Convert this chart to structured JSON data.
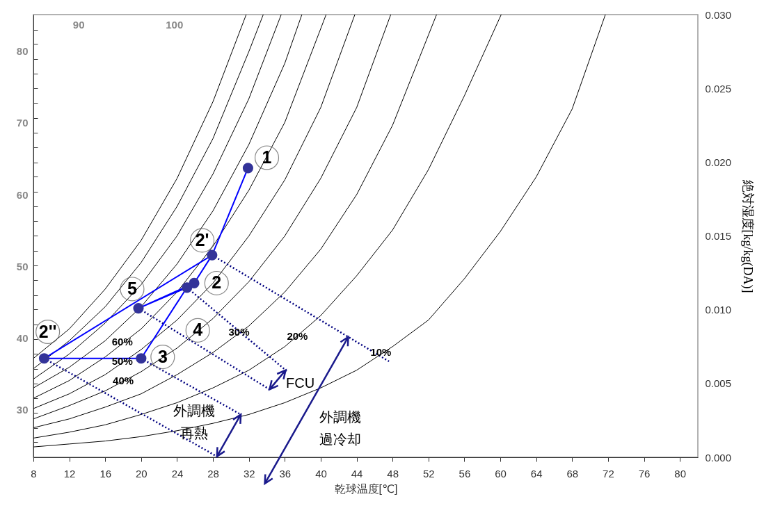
{
  "chart_data": {
    "type": "line",
    "xlabel": "乾球温度[℃]",
    "ylabel": "絶対湿度[kg/kg(DA)]",
    "xlim": [
      8,
      82
    ],
    "xticks": [
      8,
      12,
      16,
      20,
      24,
      28,
      32,
      36,
      40,
      44,
      48,
      52,
      56,
      60,
      64,
      68,
      72,
      76,
      80
    ],
    "x2lim": [
      85.3,
      154.7
    ],
    "x2ticks": [
      90,
      100
    ],
    "ylim": [
      0,
      0.03
    ],
    "yticks": [
      {
        "value": 0,
        "label": "0.000"
      },
      {
        "value": 0.005,
        "label": "0.005"
      },
      {
        "value": 0.01,
        "label": "0.010"
      },
      {
        "value": 0.015,
        "label": "0.015"
      },
      {
        "value": 0.02,
        "label": "0.020"
      },
      {
        "value": 0.025,
        "label": "0.025"
      },
      {
        "value": 0.03,
        "label": "0.030"
      }
    ],
    "y2lim": [
      23.4,
      85.1
    ],
    "y2ticks": [
      30,
      40,
      50,
      60,
      70,
      80,
      {
        "value": 25.5,
        "label": null
      },
      {
        "value": 27.5,
        "label": null
      },
      {
        "value": 29.6,
        "label": null
      },
      {
        "value": 31.6,
        "label": null
      },
      {
        "value": 33.7,
        "label": null
      },
      {
        "value": 35.7,
        "label": null
      },
      {
        "value": 37.8,
        "label": null
      },
      {
        "value": 39.9,
        "label": null
      },
      {
        "value": 41.9,
        "label": null
      },
      {
        "value": 44.0,
        "label": null
      },
      {
        "value": 46.0,
        "label": null
      },
      {
        "value": 48.1,
        "label": null
      },
      {
        "value": 50.1,
        "label": null
      },
      {
        "value": 52.2,
        "label": null
      },
      {
        "value": 54.3,
        "label": null
      },
      {
        "value": 56.3,
        "label": null
      },
      {
        "value": 58.4,
        "label": null
      },
      {
        "value": 60.4,
        "label": null
      },
      {
        "value": 62.5,
        "label": null
      },
      {
        "value": 64.5,
        "label": null
      },
      {
        "value": 66.6,
        "label": null
      },
      {
        "value": 68.6,
        "label": null
      },
      {
        "value": 70.7,
        "label": null
      },
      {
        "value": 72.8,
        "label": null
      },
      {
        "value": 74.8,
        "label": null
      },
      {
        "value": 76.9,
        "label": null
      },
      {
        "value": 78.9,
        "label": null
      },
      {
        "value": 81.0,
        "label": null
      },
      {
        "value": 83.0,
        "label": null
      }
    ],
    "series": [
      {
        "color": "#000000",
        "line_style": "solid",
        "marker": "none",
        "x": [
          8,
          12,
          16,
          20,
          24,
          28,
          31.7
        ],
        "values": [
          0.0067,
          0.0087,
          0.0114,
          0.0147,
          0.0189,
          0.0241,
          0.03
        ]
      },
      {
        "color": "#000000",
        "line_style": "solid",
        "marker": "none",
        "x": [
          8,
          12,
          16,
          20,
          24,
          28,
          32,
          33.6
        ],
        "values": [
          0.006,
          0.0079,
          0.0102,
          0.0132,
          0.017,
          0.0216,
          0.0275,
          0.03
        ]
      },
      {
        "color": "#000000",
        "line_style": "solid",
        "marker": "none",
        "x": [
          8,
          12,
          16,
          20,
          24,
          28,
          32,
          35.6
        ],
        "values": [
          0.0053,
          0.007,
          0.0091,
          0.0117,
          0.015,
          0.0192,
          0.0243,
          0.03
        ]
      },
      {
        "color": "#000000",
        "line_style": "solid",
        "marker": "none",
        "x": [
          8,
          12,
          16,
          20,
          24,
          28,
          32,
          36,
          37.9
        ],
        "values": [
          0.0047,
          0.0061,
          0.0079,
          0.0102,
          0.0131,
          0.0167,
          0.0212,
          0.0267,
          0.03
        ]
      },
      {
        "color": "#000000",
        "line_style": "solid",
        "marker": "none",
        "x": [
          8,
          12,
          16,
          20,
          24,
          28,
          32,
          36,
          40.6
        ],
        "values": [
          0.004,
          0.0052,
          0.0068,
          0.0087,
          0.0112,
          0.0143,
          0.0181,
          0.0227,
          0.03
        ]
      },
      {
        "color": "#000000",
        "line_style": "solid",
        "marker": "none",
        "x": [
          8,
          12,
          16,
          20,
          24,
          28,
          32,
          36,
          40,
          43.8
        ],
        "values": [
          0.0033,
          0.0043,
          0.0056,
          0.0073,
          0.0093,
          0.0118,
          0.015,
          0.0188,
          0.0237,
          0.03
        ]
      },
      {
        "color": "#000000",
        "line_style": "solid",
        "marker": "none",
        "x": [
          8,
          12,
          16,
          20,
          24,
          28,
          32,
          36,
          40,
          44,
          47.8
        ],
        "values": [
          0.0026,
          0.0035,
          0.0045,
          0.0058,
          0.0074,
          0.0094,
          0.0119,
          0.015,
          0.0189,
          0.0237,
          0.03
        ]
      },
      {
        "color": "#000000",
        "line_style": "solid",
        "marker": "none",
        "x": [
          8,
          12,
          16,
          20,
          24,
          28,
          32,
          36,
          40,
          44,
          48,
          52.9
        ],
        "values": [
          0.002,
          0.0026,
          0.0034,
          0.0043,
          0.0056,
          0.0071,
          0.0089,
          0.0112,
          0.0141,
          0.0178,
          0.0225,
          0.03
        ]
      },
      {
        "color": "#000000",
        "line_style": "solid",
        "marker": "none",
        "x": [
          8,
          12,
          16,
          20,
          24,
          28,
          32,
          36,
          40,
          44,
          48,
          52,
          56,
          60.1
        ],
        "values": [
          0.0013,
          0.0017,
          0.0022,
          0.0029,
          0.0037,
          0.0047,
          0.0059,
          0.0075,
          0.0096,
          0.0123,
          0.0154,
          0.0195,
          0.0245,
          0.03
        ]
      },
      {
        "color": "#000000",
        "line_style": "solid",
        "marker": "none",
        "x": [
          8,
          12,
          16,
          20,
          24,
          28,
          32,
          36,
          40,
          44,
          48,
          52,
          56,
          60,
          64,
          68,
          71.7
        ],
        "values": [
          0.0007,
          0.0009,
          0.0011,
          0.0014,
          0.0018,
          0.0023,
          0.0029,
          0.0037,
          0.0047,
          0.0059,
          0.0075,
          0.0093,
          0.0121,
          0.0153,
          0.019,
          0.0236,
          0.03
        ]
      },
      {
        "color": "#000080",
        "line_style": "dotted",
        "marker": "none",
        "x": [
          27.9,
          47.6
        ],
        "values": [
          0.0137,
          0.0065
        ]
      },
      {
        "color": "#000080",
        "line_style": "dotted",
        "marker": "none",
        "x": [
          25.1,
          36.3
        ],
        "values": [
          0.0115,
          0.0058
        ]
      },
      {
        "color": "#000080",
        "line_style": "dotted",
        "marker": "none",
        "x": [
          19.7,
          34.3
        ],
        "values": [
          0.0101,
          0.0046
        ]
      },
      {
        "color": "#000080",
        "line_style": "dotted",
        "marker": "none",
        "x": [
          20.0,
          31.1
        ],
        "values": [
          0.0067,
          0.0029
        ]
      },
      {
        "color": "#000080",
        "line_style": "dotted",
        "marker": "none",
        "x": [
          9.2,
          28.6
        ],
        "values": [
          0.0067,
          0
        ]
      },
      {
        "color": "#0000ff",
        "line_style": "solid",
        "marker": "none",
        "x": [
          31.9,
          27.9,
          25.9,
          19.7,
          25.1,
          20.0,
          9.2,
          27.9
        ],
        "values": [
          0.0196,
          0.0137,
          0.0118,
          0.0101,
          0.0115,
          0.0067,
          0.0067,
          0.0137
        ]
      },
      {
        "type": "scatter",
        "color": "#333399",
        "marker": "circle",
        "x": [
          31.9,
          27.9,
          25.9,
          25.1,
          19.7,
          20.0,
          9.2
        ],
        "values": [
          0.0196,
          0.0137,
          0.0118,
          0.0115,
          0.0101,
          0.0067,
          0.0067
        ]
      }
    ],
    "annotations": [
      {
        "text": "1",
        "x": 34.0,
        "y": 0.0203
      },
      {
        "text": "2'",
        "x": 26.8,
        "y": 0.0147
      },
      {
        "text": "2",
        "x": 28.4,
        "y": 0.0118
      },
      {
        "text": "4",
        "x": 26.3,
        "y": 0.0086
      },
      {
        "text": "5",
        "x": 19.0,
        "y": 0.0114
      },
      {
        "text": "3",
        "x": 22.4,
        "y": 0.0068
      },
      {
        "text": "2''",
        "x": 9.6,
        "y": 0.0085
      },
      {
        "text": "60%",
        "x": 17.9,
        "y": 0.0078
      },
      {
        "text": "50%",
        "x": 17.9,
        "y": 0.0065
      },
      {
        "text": "40%",
        "x": 18.0,
        "y": 0.0052
      },
      {
        "text": "30%",
        "x": 30.9,
        "y": 0.0085
      },
      {
        "text": "20%",
        "x": 37.4,
        "y": 0.0082
      },
      {
        "text": "10%",
        "x": 46.7,
        "y": 0.0071
      },
      "FCU",
      "外調機",
      "再熱",
      "外調機",
      "過冷却"
    ]
  }
}
